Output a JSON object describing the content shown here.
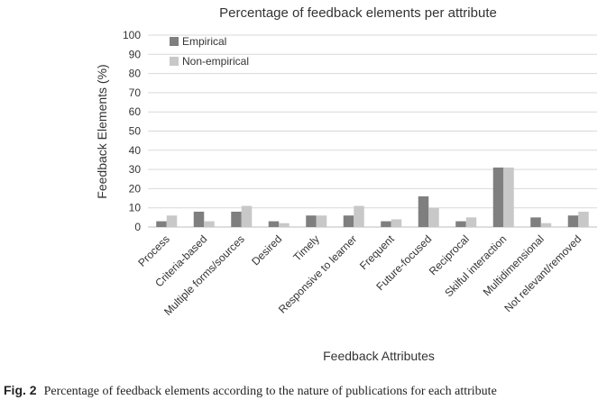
{
  "chart_data": {
    "type": "bar",
    "title": "Percentage of feedback elements per attribute",
    "xlabel": "Feedback Attributes",
    "ylabel": "Feedback Elements (%)",
    "ylim": [
      0,
      100
    ],
    "yticks": [
      0,
      10,
      20,
      30,
      40,
      50,
      60,
      70,
      80,
      90,
      100
    ],
    "grid": true,
    "legend_position": "top-left",
    "categories": [
      "Process",
      "Criteria-based",
      "Multiple forms/sources",
      "Desired",
      "Timely",
      "Responsive to learner",
      "Frequent",
      "Future-focused",
      "Reciprocal",
      "Skilful interaction",
      "Multidimensional",
      "Not relevant/removed"
    ],
    "series": [
      {
        "name": "Empirical",
        "color": "#7f7f7f",
        "values": [
          3,
          8,
          8,
          3,
          6,
          6,
          3,
          16,
          3,
          31,
          5,
          6
        ]
      },
      {
        "name": "Non-empirical",
        "color": "#c8c8c8",
        "values": [
          6,
          3,
          11,
          2,
          6,
          11,
          4,
          10,
          5,
          31,
          2,
          8
        ]
      }
    ]
  },
  "caption": {
    "label": "Fig. 2",
    "text": "Percentage of feedback elements according to the nature of publications for each attribute"
  }
}
